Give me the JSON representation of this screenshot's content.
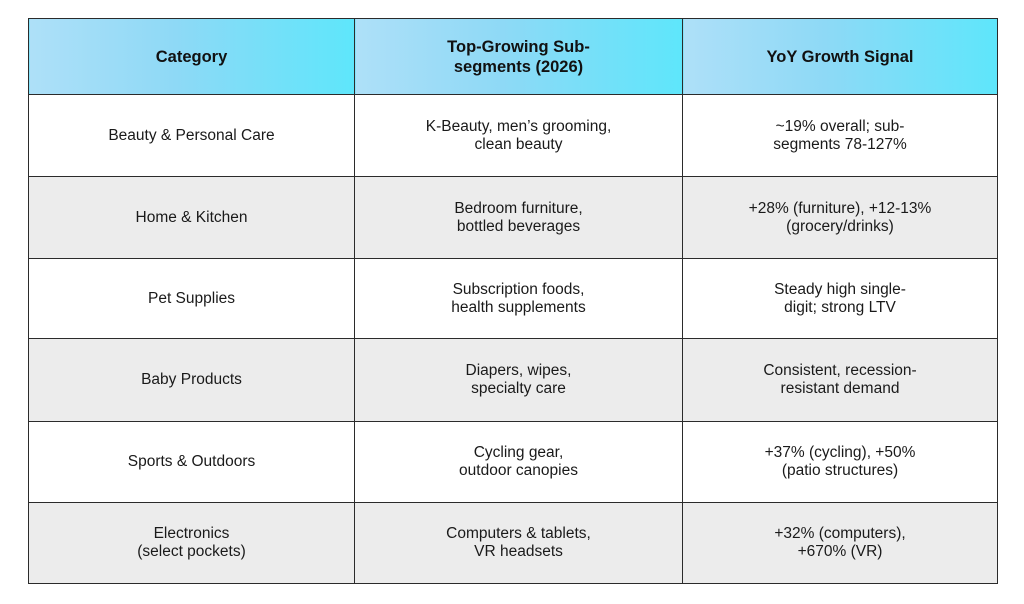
{
  "table": {
    "headers": [
      "Category",
      "Top-Growing Sub-\nsegments (2026)",
      "YoY Growth Signal"
    ],
    "rows": [
      {
        "category": "Beauty & Personal Care",
        "subsegments": "K-Beauty, men’s grooming,\nclean beauty",
        "growth": "~19% overall; sub-\nsegments 78-127%"
      },
      {
        "category": "Home & Kitchen",
        "subsegments": "Bedroom furniture,\nbottled beverages",
        "growth": "+28% (furniture), +12-13%\n(grocery/drinks)"
      },
      {
        "category": "Pet Supplies",
        "subsegments": "Subscription foods,\nhealth supplements",
        "growth": "Steady high single-\ndigit; strong LTV"
      },
      {
        "category": "Baby Products",
        "subsegments": "Diapers, wipes,\nspecialty care",
        "growth": "Consistent, recession-\nresistant demand"
      },
      {
        "category": "Sports & Outdoors",
        "subsegments": "Cycling gear,\noutdoor canopies",
        "growth": "+37% (cycling), +50%\n(patio structures)"
      },
      {
        "category": "Electronics\n(select pockets)",
        "subsegments": "Computers & tablets,\nVR headsets",
        "growth": "+32% (computers),\n+670% (VR)"
      }
    ]
  }
}
